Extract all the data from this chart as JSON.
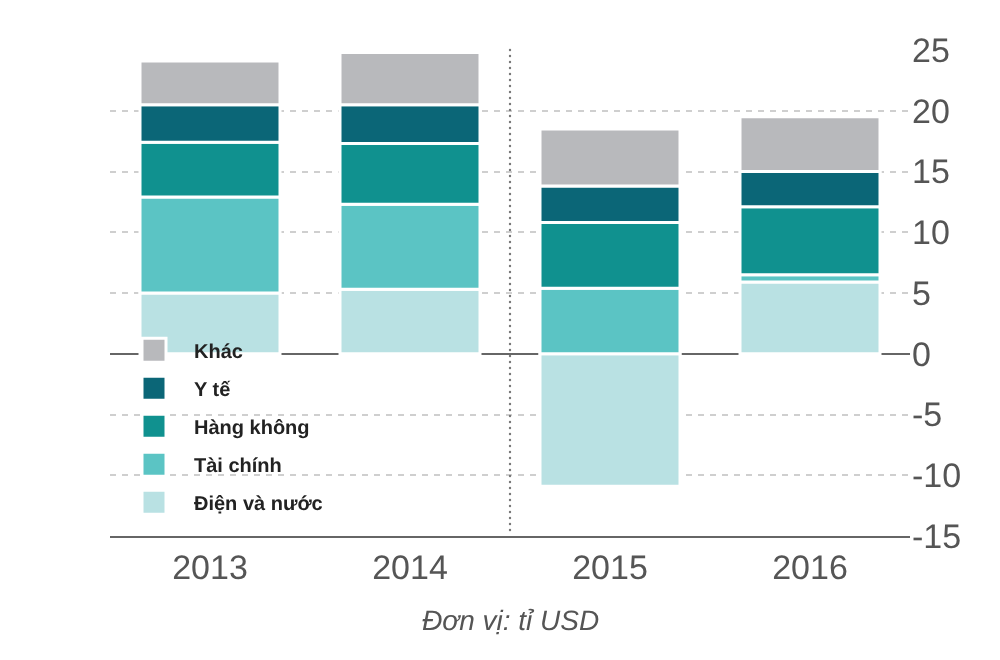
{
  "chart_data": {
    "type": "bar",
    "stacked": true,
    "categories": [
      "2013",
      "2014",
      "2015",
      "2016"
    ],
    "series": [
      {
        "name": "Điện và nước",
        "color": "#b9e1e3",
        "values": [
          5.0,
          5.3,
          -10.9,
          5.9
        ]
      },
      {
        "name": "Tài chính",
        "color": "#5bc4c4",
        "values": [
          7.9,
          7.0,
          5.4,
          0.6
        ]
      },
      {
        "name": "Hàng không",
        "color": "#10918f",
        "values": [
          4.5,
          5.0,
          5.4,
          5.6
        ]
      },
      {
        "name": "Y tế",
        "color": "#0b6677",
        "values": [
          3.1,
          3.2,
          3.0,
          2.9
        ]
      },
      {
        "name": "Khác",
        "color": "#b8b9bc",
        "values": [
          3.6,
          4.3,
          4.7,
          4.5
        ]
      }
    ],
    "ylim": [
      -15,
      25
    ],
    "yticks": [
      -15,
      -10,
      -5,
      0,
      5,
      10,
      15,
      20,
      25
    ],
    "grid": "y",
    "legend": "bottom left",
    "annotations": [
      "Đơn vị: tỉ USD"
    ]
  }
}
